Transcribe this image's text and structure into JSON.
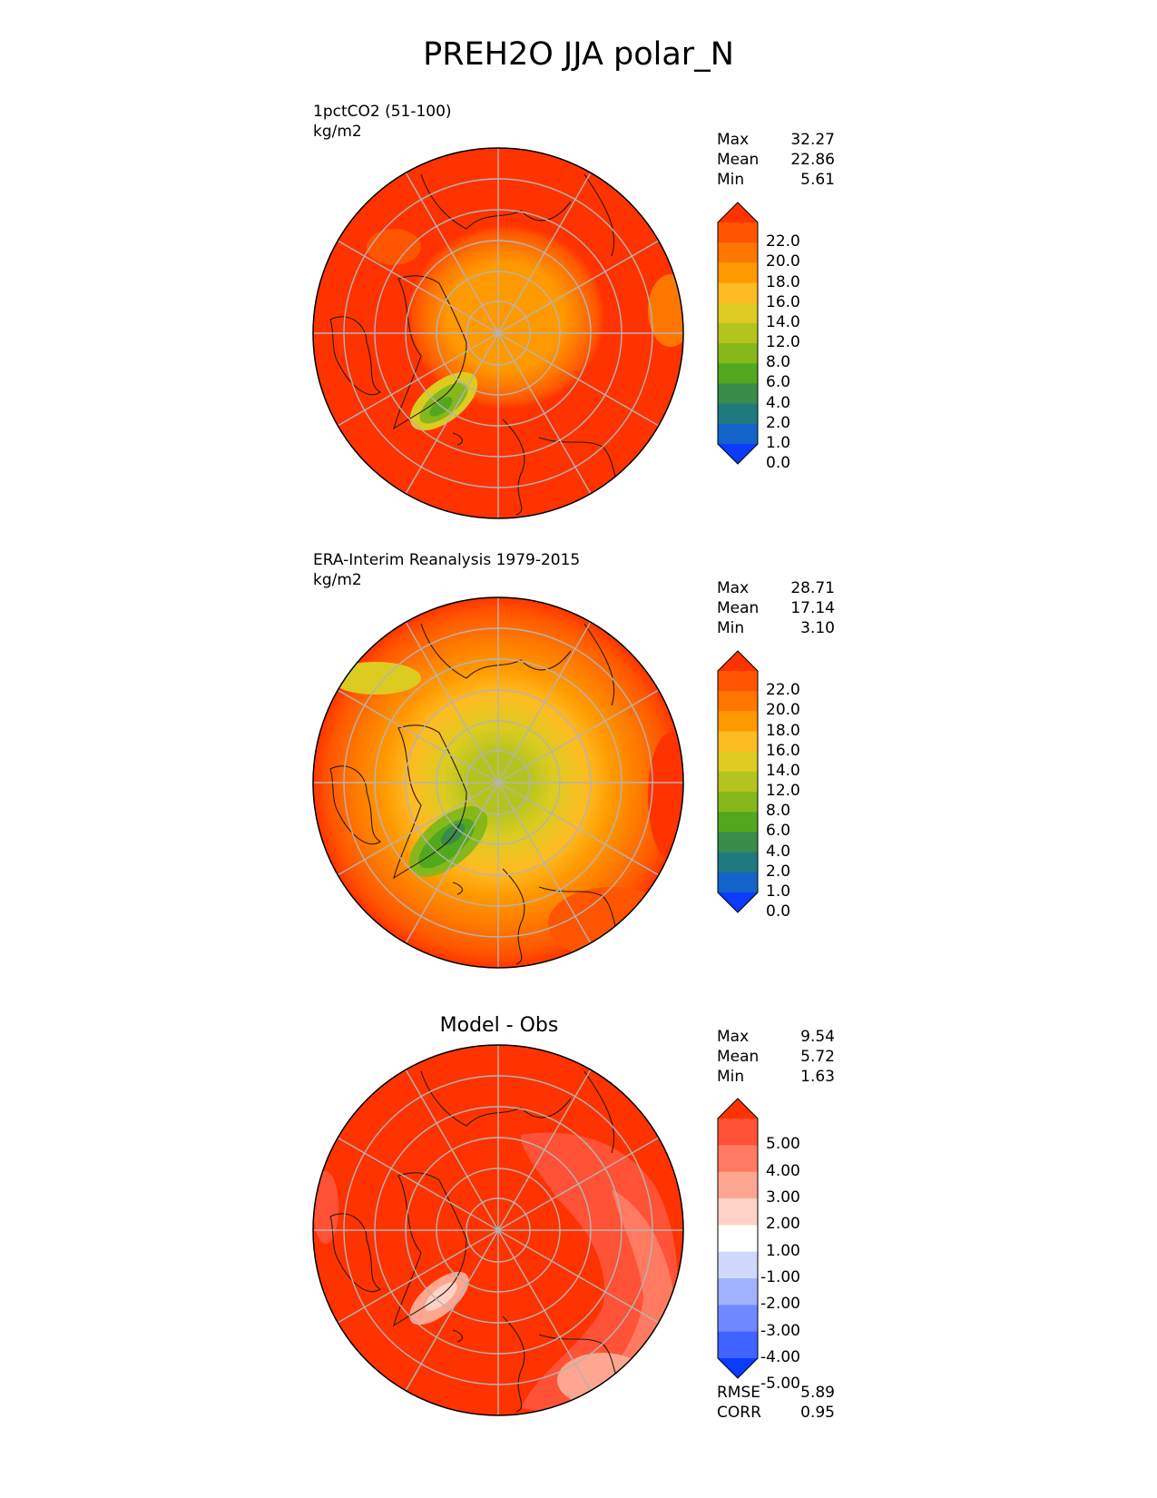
{
  "title": "PREH2O JJA polar_N",
  "panels": [
    {
      "id": "model",
      "title": "1pctCO2 (51-100)",
      "units": "kg/m2",
      "stats": {
        "max_label": "Max",
        "max": "32.27",
        "mean_label": "Mean",
        "mean": "22.86",
        "min_label": "Min",
        "min": "5.61"
      }
    },
    {
      "id": "obs",
      "title": "ERA-Interim Reanalysis 1979-2015",
      "units": "kg/m2",
      "stats": {
        "max_label": "Max",
        "max": "28.71",
        "mean_label": "Mean",
        "mean": "17.14",
        "min_label": "Min",
        "min": "3.10"
      }
    },
    {
      "id": "diff",
      "title": "Model - Obs",
      "stats": {
        "max_label": "Max",
        "max": "9.54",
        "mean_label": "Mean",
        "mean": "5.72",
        "min_label": "Min",
        "min": "1.63"
      },
      "metrics": {
        "rmse_label": "RMSE",
        "rmse": "5.89",
        "corr_label": "CORR",
        "corr": "0.95"
      }
    }
  ],
  "colorbar_abs": {
    "levels": [
      "22.0",
      "20.0",
      "18.0",
      "16.0",
      "14.0",
      "12.0",
      "8.0",
      "6.0",
      "4.0",
      "2.0",
      "1.0",
      "0.0"
    ],
    "colors": [
      "#ff3300",
      "#ff5500",
      "#ff7700",
      "#ff9900",
      "#ffbb22",
      "#dccc22",
      "#b4c41e",
      "#86b81c",
      "#52a81c",
      "#3a8c4a",
      "#1f7a80",
      "#1463c8",
      "#0a3cff"
    ]
  },
  "colorbar_diff": {
    "levels": [
      "5.00",
      "4.00",
      "3.00",
      "2.00",
      "1.00",
      "-1.00",
      "-2.00",
      "-3.00",
      "-4.00",
      "-5.00"
    ],
    "colors": [
      "#ff3300",
      "#ff5236",
      "#ff7a60",
      "#ffa690",
      "#ffd2c8",
      "#ffffff",
      "#d0d8ff",
      "#a0b2ff",
      "#7088ff",
      "#4062ff",
      "#0a3cff"
    ]
  },
  "map_colors": {
    "land_outline": "#2a1a10",
    "graticule": "#b4b4b4"
  }
}
